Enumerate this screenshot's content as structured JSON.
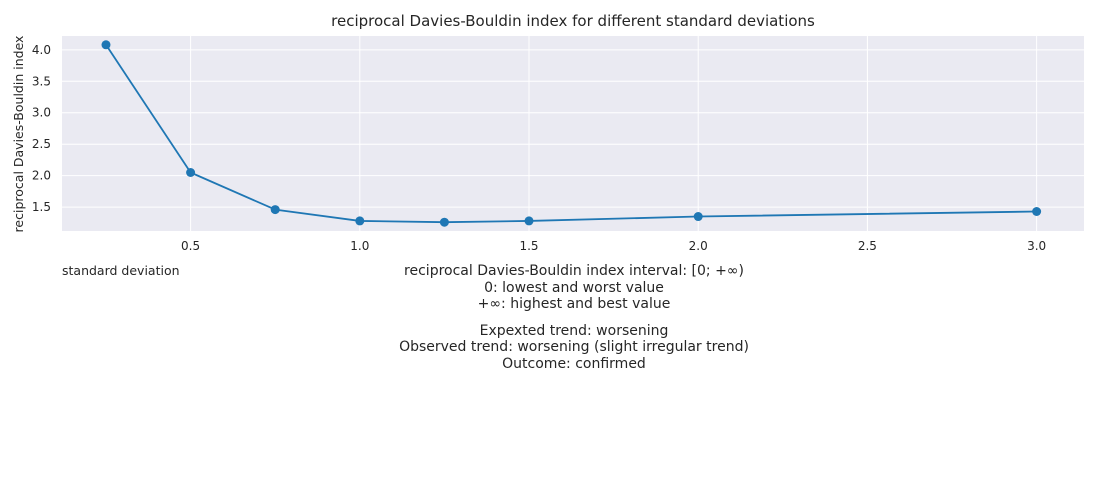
{
  "chart_data": {
    "type": "line",
    "title": "reciprocal Davies-Bouldin index for different standard deviations",
    "xlabel": "standard deviation",
    "ylabel": "reciprocal Davies-Bouldin index",
    "x": [
      0.25,
      0.5,
      0.75,
      1.0,
      1.25,
      1.5,
      2.0,
      3.0
    ],
    "series": [
      {
        "values": [
          4.08,
          2.05,
          1.46,
          1.28,
          1.26,
          1.28,
          1.35,
          1.43
        ]
      }
    ],
    "xticks": [
      "0.5",
      "1.0",
      "1.5",
      "2.0",
      "2.5",
      "3.0"
    ],
    "yticks": [
      "1.5",
      "2.0",
      "2.5",
      "3.0",
      "3.5",
      "4.0"
    ],
    "xlim": [
      0.12,
      3.14
    ],
    "ylim": [
      1.12,
      4.22
    ],
    "grid": true,
    "background": "#eaeaf2",
    "grid_color": "#ffffff",
    "line_color": "#1f77b4",
    "marker": "circle"
  },
  "notes": {
    "interval": "reciprocal Davies-Bouldin index interval: [0; +∞)",
    "lowest": "0: lowest and worst value",
    "highest": "+∞: highest and best value",
    "expected": "Expexted trend: worsening",
    "observed": "Observed trend: worsening (slight irregular trend)",
    "outcome": "Outcome: confirmed"
  }
}
